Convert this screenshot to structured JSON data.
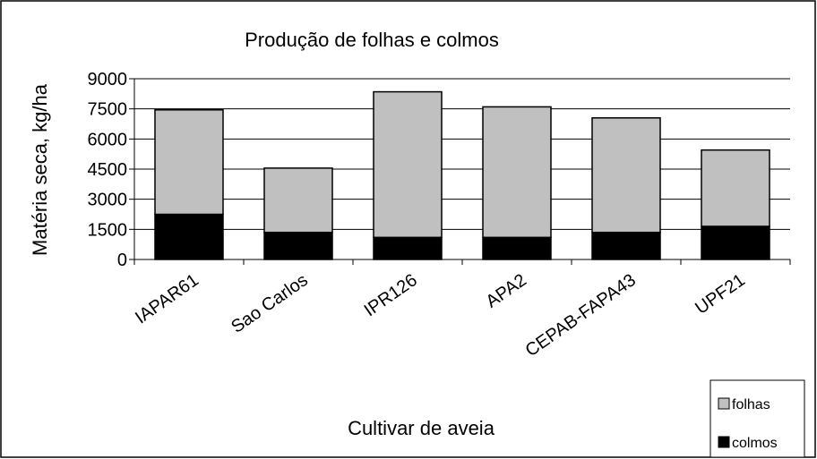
{
  "chart_data": {
    "type": "stacked_bar",
    "title": "Produção de folhas e colmos",
    "x_label": "Cultivar de aveia",
    "y_label": "Matéria seca, kg/ha",
    "categories": [
      "IAPAR61",
      "Sao Carlos",
      "IPR126",
      "APA2",
      "CEPAB-FAPA43",
      "UPF21"
    ],
    "series": [
      {
        "name": "colmos",
        "color": "#000000",
        "values": [
          2250,
          1350,
          1100,
          1100,
          1350,
          1650
        ]
      },
      {
        "name": "folhas",
        "color": "#c0c0c0",
        "values": [
          5200,
          3200,
          7250,
          6500,
          5700,
          3800
        ]
      }
    ],
    "ylim": [
      0,
      9000
    ],
    "yticks": [
      0,
      1500,
      3000,
      4500,
      6000,
      7500,
      9000
    ],
    "grid": true,
    "legend": "bottom-right"
  }
}
